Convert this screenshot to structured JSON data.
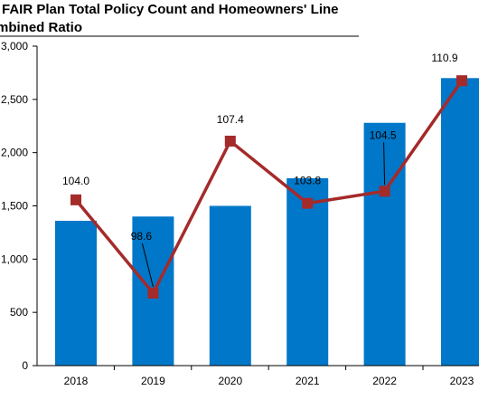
{
  "title": {
    "line1": "FAIR Plan Total Policy Count and Homeowners' Line",
    "line2": "mbined Ratio"
  },
  "colors": {
    "bar": "#0077c8",
    "line": "#a52a2a",
    "axis": "#000000"
  },
  "chart_data": {
    "type": "bar",
    "title": "FAIR Plan Total Policy Count and Homeowners' Line mbined Ratio",
    "categories": [
      "2018",
      "2019",
      "2020",
      "2021",
      "2022",
      "2023"
    ],
    "y_ticks": [
      "3,000",
      "2,500",
      "2,000",
      "1,500",
      "1,000",
      "500",
      "0"
    ],
    "ylim": [
      0,
      3000
    ],
    "grid": false,
    "series": [
      {
        "type": "bar",
        "values": [
          1360,
          1400,
          1500,
          1760,
          2280,
          2700
        ]
      },
      {
        "type": "line",
        "marker": "square",
        "values": [
          104.0,
          98.6,
          107.4,
          103.8,
          104.5,
          110.9
        ],
        "labels": [
          "104.0",
          "98.6",
          "107.4",
          "103.8",
          "104.5",
          "110.9"
        ],
        "ylim": [
          94.4,
          112.9
        ]
      }
    ]
  }
}
